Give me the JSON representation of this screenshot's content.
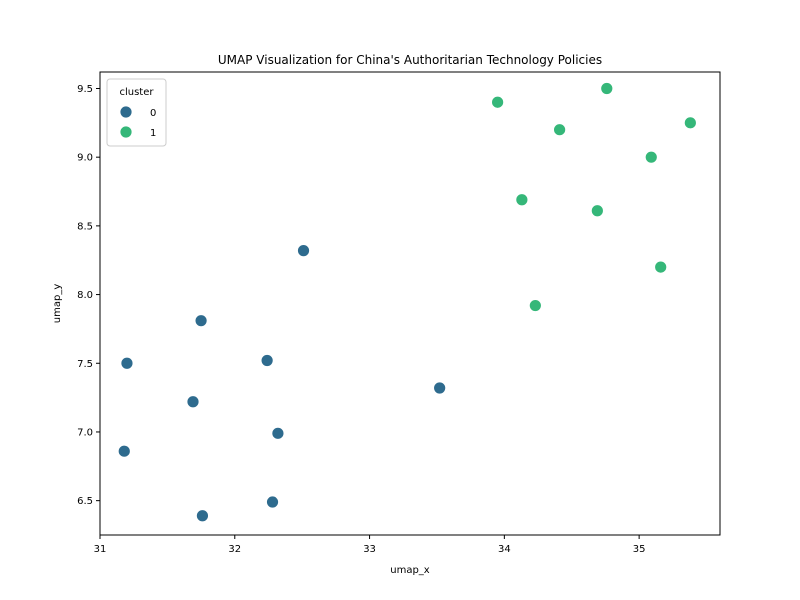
{
  "chart_data": {
    "type": "scatter",
    "title": "UMAP Visualization for China's Authoritarian Technology Policies",
    "xlabel": "umap_x",
    "ylabel": "umap_y",
    "xlim": [
      31.0,
      35.6
    ],
    "ylim": [
      6.25,
      9.62
    ],
    "xticks": [
      31,
      32,
      33,
      34,
      35
    ],
    "yticks": [
      6.5,
      7.0,
      7.5,
      8.0,
      8.5,
      9.0,
      9.5
    ],
    "xtick_labels": [
      "31",
      "32",
      "33",
      "34",
      "35"
    ],
    "ytick_labels": [
      "6.5",
      "7.0",
      "7.5",
      "8.0",
      "8.5",
      "9.0",
      "9.5"
    ],
    "grid": false,
    "legend": {
      "title": "cluster",
      "placement": "top-left"
    },
    "series": [
      {
        "name": "0",
        "color": "#2e6b8e",
        "points": [
          {
            "x": 32.51,
            "y": 8.32
          },
          {
            "x": 31.75,
            "y": 7.81
          },
          {
            "x": 31.2,
            "y": 7.5
          },
          {
            "x": 32.24,
            "y": 7.52
          },
          {
            "x": 33.52,
            "y": 7.32
          },
          {
            "x": 31.69,
            "y": 7.22
          },
          {
            "x": 32.32,
            "y": 6.99
          },
          {
            "x": 31.18,
            "y": 6.86
          },
          {
            "x": 32.28,
            "y": 6.49
          },
          {
            "x": 31.76,
            "y": 6.39
          }
        ]
      },
      {
        "name": "1",
        "color": "#35b779",
        "points": [
          {
            "x": 33.95,
            "y": 9.4
          },
          {
            "x": 34.76,
            "y": 9.5
          },
          {
            "x": 34.41,
            "y": 9.2
          },
          {
            "x": 35.38,
            "y": 9.25
          },
          {
            "x": 35.09,
            "y": 9.0
          },
          {
            "x": 34.13,
            "y": 8.69
          },
          {
            "x": 34.69,
            "y": 8.61
          },
          {
            "x": 35.16,
            "y": 8.2
          },
          {
            "x": 34.23,
            "y": 7.92
          }
        ]
      }
    ]
  }
}
